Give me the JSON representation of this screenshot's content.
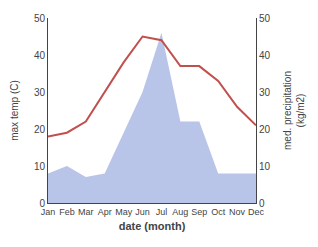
{
  "chart_data": {
    "type": "line",
    "categories": [
      "Jan",
      "Feb",
      "Mar",
      "Apr",
      "May",
      "Jun",
      "Jul",
      "Aug",
      "Sep",
      "Oct",
      "Nov",
      "Dec"
    ],
    "series": [
      {
        "type": "area",
        "color": "#b8c4e8",
        "values": [
          8,
          10,
          7,
          8,
          19,
          30,
          46,
          22,
          22,
          8,
          8,
          8
        ]
      },
      {
        "type": "line",
        "color": "#c0504d",
        "values": [
          18,
          19,
          22,
          30,
          38,
          45,
          44,
          37,
          37,
          33,
          26,
          21
        ]
      }
    ],
    "xlabel": "date (month)",
    "ylabel": "max temp (C)",
    "y2label": "med. precipitation\n(kg/m2)",
    "ylim": [
      0,
      50
    ],
    "yticks": [
      0,
      10,
      20,
      30,
      40,
      50
    ],
    "y2lim": [
      0,
      50
    ],
    "y2ticks": [
      0,
      10,
      20,
      30,
      40,
      50
    ],
    "grid": false
  }
}
